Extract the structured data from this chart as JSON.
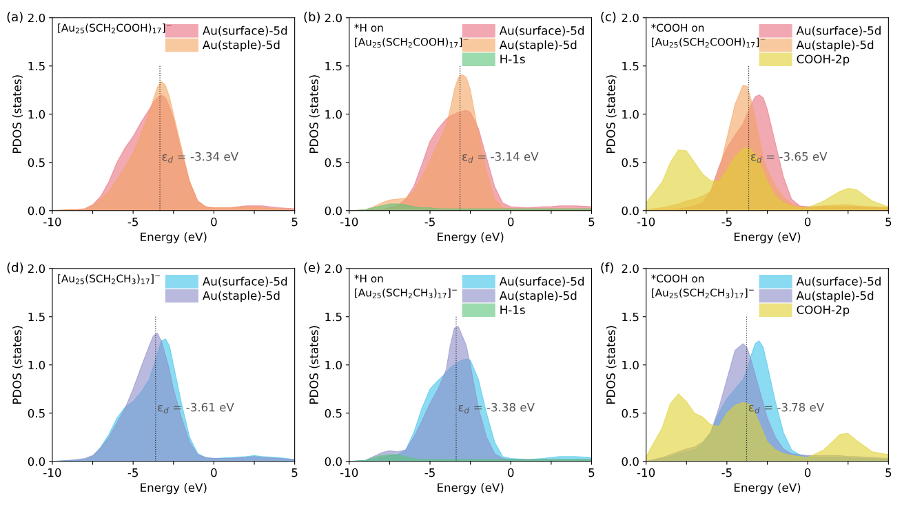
{
  "chart_data": [
    {
      "type": "area",
      "title": "(a)",
      "xlabel": "Energy (eV)",
      "ylabel": "PDOS (states)",
      "annotations": [
        "[Au$_{25}$(SCH$_{2}$COOH)$_{17}$]$^{−}$"
      ],
      "x": [
        -10,
        -9,
        -8.5,
        -8,
        -7.5,
        -7,
        -6.5,
        -6,
        -5.5,
        -5,
        -4.5,
        -4,
        -3.75,
        -3.5,
        -3.25,
        -3,
        -2.75,
        -2.5,
        -2,
        -1.5,
        -1,
        -0.5,
        0,
        1,
        2,
        2.5,
        3,
        4,
        5
      ],
      "series": [
        {
          "name": "Au(surface)-5d",
          "color": "#e8707f",
          "values": [
            0,
            0.01,
            0.01,
            0.02,
            0.06,
            0.15,
            0.3,
            0.5,
            0.65,
            0.77,
            0.92,
            1.05,
            1.12,
            1.17,
            1.2,
            1.17,
            1.08,
            0.95,
            0.6,
            0.3,
            0.1,
            0.04,
            0.03,
            0.03,
            0.05,
            0.05,
            0.05,
            0.03,
            0.02
          ]
        },
        {
          "name": "Au(staple)-5d",
          "color": "#f4a460",
          "values": [
            0,
            0.01,
            0.01,
            0.02,
            0.05,
            0.12,
            0.2,
            0.32,
            0.45,
            0.6,
            0.8,
            1.02,
            1.15,
            1.28,
            1.34,
            1.3,
            1.18,
            1.0,
            0.65,
            0.3,
            0.1,
            0.04,
            0.03,
            0.03,
            0.04,
            0.04,
            0.03,
            0.02,
            0.01
          ]
        }
      ],
      "ref_lines": [
        {
          "axis": "x",
          "value": -3.34,
          "label": "ε$_{d}$ = -3.34 eV",
          "line_style": "dotted",
          "color": "#333333"
        }
      ],
      "xlim": [
        -10,
        5
      ],
      "xticks": [
        -10,
        {
          "value": -7.5,
          "label": null
        },
        -5,
        {
          "value": -2.5,
          "label": null
        },
        0,
        {
          "value": 2.5,
          "label": null
        },
        5
      ],
      "ylim": [
        0,
        2
      ],
      "yticks": [
        {
          "value": 0,
          "label": "0.0"
        },
        {
          "value": 0.5,
          "label": "0.5"
        },
        {
          "value": 1,
          "label": "1.0"
        },
        {
          "value": 1.5,
          "label": "1.5"
        },
        {
          "value": 2,
          "label": "2.0"
        }
      ],
      "legend": "top right",
      "grid": false
    },
    {
      "type": "area",
      "title": "(b)",
      "xlabel": "Energy (eV)",
      "ylabel": "PDOS (states)",
      "annotations": [
        "*H on\n[Au$_{25}$(SCH$_{2}$COOH)$_{17}$]$^{−}$"
      ],
      "x": [
        -10,
        -9,
        -8.5,
        -8,
        -7.5,
        -7,
        -6.5,
        -6,
        -5.5,
        -5,
        -4.5,
        -4,
        -3.75,
        -3.5,
        -3.25,
        -3,
        -2.75,
        -2.5,
        -2,
        -1.5,
        -1,
        -0.5,
        0,
        1,
        2,
        2.5,
        3,
        4,
        5
      ],
      "series": [
        {
          "name": "Au(surface)-5d",
          "color": "#e8707f",
          "values": [
            0,
            0,
            0.01,
            0.01,
            0.03,
            0.05,
            0.12,
            0.25,
            0.48,
            0.72,
            0.85,
            0.95,
            0.98,
            1.0,
            1.02,
            1.03,
            1.04,
            1.02,
            0.85,
            0.55,
            0.25,
            0.08,
            0.04,
            0.03,
            0.04,
            0.04,
            0.05,
            0.05,
            0.04
          ]
        },
        {
          "name": "Au(staple)-5d",
          "color": "#f4a460",
          "values": [
            0,
            0.01,
            0.04,
            0.08,
            0.11,
            0.12,
            0.13,
            0.2,
            0.35,
            0.52,
            0.7,
            0.88,
            1.05,
            1.25,
            1.38,
            1.41,
            1.38,
            1.25,
            0.8,
            0.4,
            0.12,
            0.03,
            0.02,
            0.02,
            0.02,
            0.02,
            0.02,
            0.02,
            0.02
          ]
        },
        {
          "name": "H-1s",
          "color": "#5cc47a",
          "values": [
            0,
            0.01,
            0.03,
            0.05,
            0.07,
            0.07,
            0.06,
            0.04,
            0.03,
            0.03,
            0.02,
            0.02,
            0.02,
            0.02,
            0.02,
            0.02,
            0.02,
            0.02,
            0.02,
            0.02,
            0.02,
            0.02,
            0.02,
            0.02,
            0.02,
            0.02,
            0.02,
            0.02,
            0.02
          ]
        }
      ],
      "ref_lines": [
        {
          "axis": "x",
          "value": -3.14,
          "label": "ε$_{d}$ = -3.14 eV",
          "line_style": "dotted",
          "color": "#333333"
        }
      ],
      "xlim": [
        -10,
        5
      ],
      "xticks": [
        -10,
        {
          "value": -7.5,
          "label": null
        },
        -5,
        {
          "value": -2.5,
          "label": null
        },
        0,
        {
          "value": 2.5,
          "label": null
        },
        5
      ],
      "ylim": [
        0,
        2
      ],
      "yticks": [
        {
          "value": 0,
          "label": "0.0"
        },
        {
          "value": 0.5,
          "label": "0.5"
        },
        {
          "value": 1,
          "label": "1.0"
        },
        {
          "value": 1.5,
          "label": "1.5"
        },
        {
          "value": 2,
          "label": "2.0"
        }
      ],
      "legend": "top right",
      "grid": false
    },
    {
      "type": "area",
      "title": "(c)",
      "xlabel": "Energy (eV)",
      "ylabel": "PDOS (states)",
      "annotations": [
        "*COOH on\n[Au$_{25}$(SCH$_{2}$COOH)$_{17}$]$^{−}$"
      ],
      "x": [
        -10,
        -9,
        -8.5,
        -8,
        -7.5,
        -7,
        -6.5,
        -6,
        -5.5,
        -5,
        -4.5,
        -4,
        -3.75,
        -3.5,
        -3.25,
        -3,
        -2.75,
        -2.5,
        -2,
        -1.5,
        -1,
        -0.5,
        0,
        1,
        2,
        2.5,
        3,
        4,
        5
      ],
      "series": [
        {
          "name": "Au(surface)-5d",
          "color": "#e8707f",
          "values": [
            0,
            0.01,
            0.01,
            0.02,
            0.03,
            0.05,
            0.08,
            0.2,
            0.45,
            0.65,
            0.78,
            0.9,
            1.0,
            1.1,
            1.18,
            1.2,
            1.17,
            1.05,
            0.7,
            0.35,
            0.12,
            0.05,
            0.04,
            0.04,
            0.04,
            0.04,
            0.04,
            0.03,
            0.03
          ]
        },
        {
          "name": "Au(staple)-5d",
          "color": "#f4a460",
          "values": [
            0.01,
            0.03,
            0.05,
            0.07,
            0.1,
            0.12,
            0.15,
            0.2,
            0.4,
            0.75,
            1.1,
            1.3,
            1.29,
            1.15,
            0.95,
            0.75,
            0.55,
            0.42,
            0.25,
            0.14,
            0.07,
            0.04,
            0.03,
            0.05,
            0.06,
            0.06,
            0.05,
            0.04,
            0.03
          ]
        },
        {
          "name": "COOH-2p",
          "color": "#e0d030",
          "values": [
            0.08,
            0.3,
            0.5,
            0.63,
            0.62,
            0.5,
            0.38,
            0.31,
            0.3,
            0.42,
            0.56,
            0.64,
            0.65,
            0.63,
            0.58,
            0.5,
            0.4,
            0.3,
            0.15,
            0.08,
            0.05,
            0.03,
            0.03,
            0.1,
            0.2,
            0.23,
            0.22,
            0.1,
            0.04
          ]
        }
      ],
      "ref_lines": [
        {
          "axis": "x",
          "value": -3.65,
          "label": "ε$_{d}$ = -3.65 eV",
          "line_style": "dotted",
          "color": "#333333"
        }
      ],
      "xlim": [
        -10,
        5
      ],
      "xticks": [
        -10,
        {
          "value": -7.5,
          "label": null
        },
        -5,
        {
          "value": -2.5,
          "label": null
        },
        0,
        {
          "value": 2.5,
          "label": null
        },
        5
      ],
      "ylim": [
        0,
        2
      ],
      "yticks": [
        {
          "value": 0,
          "label": "0.0"
        },
        {
          "value": 0.5,
          "label": "0.5"
        },
        {
          "value": 1,
          "label": "1.0"
        },
        {
          "value": 1.5,
          "label": "1.5"
        },
        {
          "value": 2,
          "label": "2.0"
        }
      ],
      "legend": "top right",
      "grid": false
    },
    {
      "type": "area",
      "title": "(d)",
      "xlabel": "Energy (eV)",
      "ylabel": "PDOS (states)",
      "annotations": [
        "[Au$_{25}$(SCH$_{2}$CH$_{3}$)$_{17}$]$^{−}$"
      ],
      "x": [
        -10,
        -9,
        -8.5,
        -8,
        -7.5,
        -7,
        -6.5,
        -6,
        -5.5,
        -5,
        -4.5,
        -4,
        -3.75,
        -3.5,
        -3.25,
        -3,
        -2.75,
        -2.5,
        -2,
        -1.5,
        -1,
        -0.5,
        0,
        1,
        2,
        2.5,
        3,
        4,
        5
      ],
      "series": [
        {
          "name": "Au(surface)-5d",
          "color": "#3ec3ea",
          "values": [
            0,
            0.01,
            0.01,
            0.02,
            0.05,
            0.15,
            0.28,
            0.45,
            0.56,
            0.62,
            0.72,
            0.85,
            0.98,
            1.12,
            1.25,
            1.27,
            1.2,
            1.0,
            0.6,
            0.25,
            0.08,
            0.04,
            0.03,
            0.04,
            0.05,
            0.06,
            0.05,
            0.04,
            0.02
          ]
        },
        {
          "name": "Au(staple)-5d",
          "color": "#8c8cc8",
          "values": [
            0,
            0.01,
            0.02,
            0.03,
            0.06,
            0.14,
            0.25,
            0.4,
            0.55,
            0.75,
            0.98,
            1.2,
            1.3,
            1.33,
            1.25,
            1.1,
            0.95,
            0.75,
            0.45,
            0.2,
            0.07,
            0.04,
            0.03,
            0.03,
            0.04,
            0.05,
            0.04,
            0.03,
            0.02
          ]
        }
      ],
      "ref_lines": [
        {
          "axis": "x",
          "value": -3.61,
          "label": "ε$_{d}$ = -3.61 eV",
          "line_style": "dotted",
          "color": "#333333"
        }
      ],
      "xlim": [
        -10,
        5
      ],
      "xticks": [
        -10,
        {
          "value": -7.5,
          "label": null
        },
        -5,
        {
          "value": -2.5,
          "label": null
        },
        0,
        {
          "value": 2.5,
          "label": null
        },
        5
      ],
      "ylim": [
        0,
        2
      ],
      "yticks": [
        {
          "value": 0,
          "label": "0.0"
        },
        {
          "value": 0.5,
          "label": "0.5"
        },
        {
          "value": 1,
          "label": "1.0"
        },
        {
          "value": 1.5,
          "label": "1.5"
        },
        {
          "value": 2,
          "label": "2.0"
        }
      ],
      "legend": "top right",
      "grid": false
    },
    {
      "type": "area",
      "title": "(e)",
      "xlabel": "Energy (eV)",
      "ylabel": "PDOS (states)",
      "annotations": [
        "*H on\n[Au$_{25}$(SCH$_{2}$CH$_{3}$)$_{17}$]$^{−}$"
      ],
      "x": [
        -10,
        -9,
        -8.5,
        -8,
        -7.5,
        -7,
        -6.5,
        -6,
        -5.5,
        -5,
        -4.5,
        -4,
        -3.75,
        -3.5,
        -3.25,
        -3,
        -2.75,
        -2.5,
        -2,
        -1.5,
        -1,
        -0.5,
        0,
        1,
        2,
        2.5,
        3,
        4,
        5
      ],
      "series": [
        {
          "name": "Au(surface)-5d",
          "color": "#3ec3ea",
          "values": [
            0,
            0.01,
            0.02,
            0.04,
            0.06,
            0.07,
            0.12,
            0.3,
            0.55,
            0.75,
            0.84,
            0.92,
            0.97,
            1.0,
            1.03,
            1.05,
            1.06,
            1.05,
            0.85,
            0.5,
            0.2,
            0.05,
            0.03,
            0.02,
            0.03,
            0.04,
            0.05,
            0.05,
            0.04
          ]
        },
        {
          "name": "Au(staple)-5d",
          "color": "#8c8cc8",
          "values": [
            0,
            0.01,
            0.05,
            0.09,
            0.11,
            0.1,
            0.12,
            0.25,
            0.42,
            0.6,
            0.75,
            0.95,
            1.2,
            1.38,
            1.4,
            1.3,
            1.2,
            1.0,
            0.55,
            0.25,
            0.08,
            0.03,
            0.02,
            0.02,
            0.02,
            0.02,
            0.02,
            0.02,
            0.02
          ]
        },
        {
          "name": "H-1s",
          "color": "#5cc47a",
          "values": [
            0,
            0.01,
            0.04,
            0.06,
            0.07,
            0.07,
            0.05,
            0.03,
            0.02,
            0.02,
            0.02,
            0.02,
            0.02,
            0.02,
            0.02,
            0.02,
            0.02,
            0.02,
            0.02,
            0.02,
            0.02,
            0.02,
            0.02,
            0.02,
            0.02,
            0.02,
            0.02,
            0.02,
            0.02
          ]
        }
      ],
      "ref_lines": [
        {
          "axis": "x",
          "value": -3.38,
          "label": "ε$_{d}$ = -3.38 eV",
          "line_style": "dotted",
          "color": "#333333"
        }
      ],
      "xlim": [
        -10,
        5
      ],
      "xticks": [
        -10,
        {
          "value": -7.5,
          "label": null
        },
        -5,
        {
          "value": -2.5,
          "label": null
        },
        0,
        {
          "value": 2.5,
          "label": null
        },
        5
      ],
      "ylim": [
        0,
        2
      ],
      "yticks": [
        {
          "value": 0,
          "label": "0.0"
        },
        {
          "value": 0.5,
          "label": "0.5"
        },
        {
          "value": 1,
          "label": "1.0"
        },
        {
          "value": 1.5,
          "label": "1.5"
        },
        {
          "value": 2,
          "label": "2.0"
        }
      ],
      "legend": "top right",
      "grid": false
    },
    {
      "type": "area",
      "title": "(f)",
      "xlabel": "Energy (eV)",
      "ylabel": "PDOS (states)",
      "annotations": [
        "*COOH on\n[Au$_{25}$(SCH$_{2}$CH$_{3}$)$_{17}$]$^{−}$"
      ],
      "x": [
        -10,
        -9,
        -8.5,
        -8,
        -7.5,
        -7,
        -6.5,
        -6,
        -5.5,
        -5,
        -4.5,
        -4,
        -3.75,
        -3.5,
        -3.25,
        -3,
        -2.75,
        -2.5,
        -2,
        -1.5,
        -1,
        -0.5,
        0,
        1,
        2,
        2.5,
        3,
        4,
        5
      ],
      "series": [
        {
          "name": "Au(surface)-5d",
          "color": "#3ec3ea",
          "values": [
            0,
            0.03,
            0.05,
            0.08,
            0.1,
            0.12,
            0.18,
            0.3,
            0.5,
            0.65,
            0.75,
            0.85,
            0.95,
            1.1,
            1.22,
            1.25,
            1.18,
            1.0,
            0.62,
            0.3,
            0.12,
            0.07,
            0.05,
            0.04,
            0.04,
            0.04,
            0.03,
            0.03,
            0.02
          ]
        },
        {
          "name": "Au(staple)-5d",
          "color": "#8c8cc8",
          "values": [
            0,
            0.04,
            0.07,
            0.1,
            0.13,
            0.15,
            0.2,
            0.3,
            0.55,
            0.85,
            1.15,
            1.22,
            1.18,
            1.05,
            0.9,
            0.75,
            0.6,
            0.45,
            0.25,
            0.13,
            0.08,
            0.07,
            0.06,
            0.06,
            0.06,
            0.05,
            0.05,
            0.04,
            0.03
          ]
        },
        {
          "name": "COOH-2p",
          "color": "#e0d030",
          "values": [
            0.05,
            0.35,
            0.6,
            0.7,
            0.62,
            0.5,
            0.46,
            0.38,
            0.36,
            0.5,
            0.58,
            0.61,
            0.6,
            0.58,
            0.5,
            0.4,
            0.3,
            0.2,
            0.12,
            0.08,
            0.06,
            0.05,
            0.04,
            0.12,
            0.28,
            0.29,
            0.22,
            0.1,
            0.07
          ]
        }
      ],
      "ref_lines": [
        {
          "axis": "x",
          "value": -3.78,
          "label": "ε$_{d}$ = -3.78 eV",
          "line_style": "dotted",
          "color": "#333333"
        }
      ],
      "xlim": [
        -10,
        5
      ],
      "xticks": [
        -10,
        {
          "value": -7.5,
          "label": null
        },
        -5,
        {
          "value": -2.5,
          "label": null
        },
        0,
        {
          "value": 2.5,
          "label": null
        },
        5
      ],
      "ylim": [
        0,
        2
      ],
      "yticks": [
        {
          "value": 0,
          "label": "0.0"
        },
        {
          "value": 0.5,
          "label": "0.5"
        },
        {
          "value": 1,
          "label": "1.0"
        },
        {
          "value": 1.5,
          "label": "1.5"
        },
        {
          "value": 2,
          "label": "2.0"
        }
      ],
      "legend": "top right",
      "grid": false
    }
  ]
}
